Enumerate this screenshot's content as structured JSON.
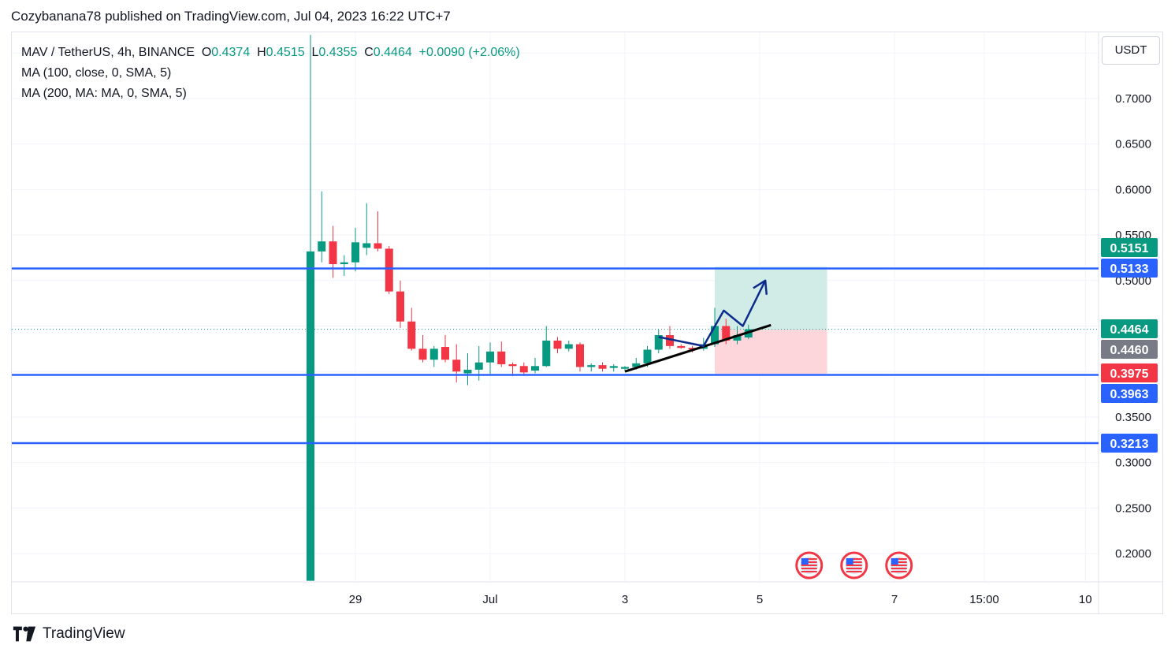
{
  "header": {
    "published_line": "Cozybanana78 published on TradingView.com, Jul 04, 2023 16:22 UTC+7"
  },
  "legend": {
    "symbol": "MAV / TetherUS, 4h, BINANCE",
    "o_label": "O",
    "o_value": "0.4374",
    "h_label": "H",
    "h_value": "0.4515",
    "l_label": "L",
    "l_value": "0.4355",
    "c_label": "C",
    "c_value": "0.4464",
    "change": "+0.0090 (+2.06%)",
    "ma1": "MA (100, close, 0, SMA, 5)",
    "ma2": "MA (200, MA: MA, 0, SMA, 5)"
  },
  "price_axis": {
    "unit": "USDT"
  },
  "footer": {
    "brand": "TradingView"
  },
  "colors": {
    "up": "#089981",
    "down": "#f23645",
    "level_line": "#2962ff",
    "trendline": "#000000",
    "arrow": "#0d2b8c",
    "tp_zone": "#d1ece6",
    "sl_zone": "#fcd6da",
    "current_price_tag": "#089981",
    "entry_tag": "#787b86"
  },
  "chart_data": {
    "type": "candlestick",
    "symbol": "MAV / TetherUS",
    "interval": "4h",
    "exchange": "BINANCE",
    "y_axis": {
      "ticks": [
        0.7,
        0.65,
        0.6,
        0.55,
        0.5,
        0.35,
        0.3,
        0.25,
        0.2
      ],
      "tick_labels": [
        "0.7000",
        "0.6500",
        "0.6000",
        "0.5500",
        "0.5000",
        "0.3500",
        "0.3000",
        "0.2500",
        "0.2000"
      ],
      "ylim": [
        0.17,
        0.77
      ]
    },
    "x_axis": {
      "ticks": [
        {
          "label": "29",
          "t": 4
        },
        {
          "label": "Jul",
          "t": 16
        },
        {
          "label": "3",
          "t": 28
        },
        {
          "label": "5",
          "t": 40
        },
        {
          "label": "7",
          "t": 52
        },
        {
          "label": "15:00",
          "t": 60
        },
        {
          "label": "10",
          "t": 69
        }
      ]
    },
    "candles": [
      {
        "t": 0,
        "o": 0.17,
        "h": 0.77,
        "l": 0.17,
        "c": 0.532
      },
      {
        "t": 1,
        "o": 0.532,
        "h": 0.598,
        "l": 0.52,
        "c": 0.543
      },
      {
        "t": 2,
        "o": 0.543,
        "h": 0.56,
        "l": 0.503,
        "c": 0.518
      },
      {
        "t": 3,
        "o": 0.518,
        "h": 0.528,
        "l": 0.505,
        "c": 0.52
      },
      {
        "t": 4,
        "o": 0.52,
        "h": 0.558,
        "l": 0.51,
        "c": 0.542
      },
      {
        "t": 5,
        "o": 0.536,
        "h": 0.585,
        "l": 0.528,
        "c": 0.541
      },
      {
        "t": 6,
        "o": 0.541,
        "h": 0.576,
        "l": 0.532,
        "c": 0.535
      },
      {
        "t": 7,
        "o": 0.535,
        "h": 0.538,
        "l": 0.485,
        "c": 0.488
      },
      {
        "t": 8,
        "o": 0.488,
        "h": 0.5,
        "l": 0.448,
        "c": 0.455
      },
      {
        "t": 9,
        "o": 0.455,
        "h": 0.47,
        "l": 0.423,
        "c": 0.425
      },
      {
        "t": 10,
        "o": 0.425,
        "h": 0.44,
        "l": 0.41,
        "c": 0.413
      },
      {
        "t": 11,
        "o": 0.413,
        "h": 0.428,
        "l": 0.405,
        "c": 0.425
      },
      {
        "t": 12,
        "o": 0.427,
        "h": 0.44,
        "l": 0.41,
        "c": 0.413
      },
      {
        "t": 13,
        "o": 0.413,
        "h": 0.43,
        "l": 0.388,
        "c": 0.4
      },
      {
        "t": 14,
        "o": 0.398,
        "h": 0.42,
        "l": 0.385,
        "c": 0.402
      },
      {
        "t": 15,
        "o": 0.402,
        "h": 0.428,
        "l": 0.39,
        "c": 0.41
      },
      {
        "t": 16,
        "o": 0.41,
        "h": 0.432,
        "l": 0.397,
        "c": 0.422
      },
      {
        "t": 17,
        "o": 0.422,
        "h": 0.433,
        "l": 0.405,
        "c": 0.408
      },
      {
        "t": 18,
        "o": 0.408,
        "h": 0.41,
        "l": 0.395,
        "c": 0.406
      },
      {
        "t": 19,
        "o": 0.406,
        "h": 0.41,
        "l": 0.395,
        "c": 0.399
      },
      {
        "t": 20,
        "o": 0.401,
        "h": 0.415,
        "l": 0.398,
        "c": 0.406
      },
      {
        "t": 21,
        "o": 0.406,
        "h": 0.45,
        "l": 0.405,
        "c": 0.434
      },
      {
        "t": 22,
        "o": 0.434,
        "h": 0.438,
        "l": 0.42,
        "c": 0.425
      },
      {
        "t": 23,
        "o": 0.425,
        "h": 0.434,
        "l": 0.422,
        "c": 0.43
      },
      {
        "t": 24,
        "o": 0.43,
        "h": 0.432,
        "l": 0.4,
        "c": 0.405
      },
      {
        "t": 25,
        "o": 0.405,
        "h": 0.409,
        "l": 0.4,
        "c": 0.407
      },
      {
        "t": 26,
        "o": 0.407,
        "h": 0.41,
        "l": 0.4,
        "c": 0.403
      },
      {
        "t": 27,
        "o": 0.404,
        "h": 0.408,
        "l": 0.4,
        "c": 0.406
      },
      {
        "t": 28,
        "o": 0.403,
        "h": 0.406,
        "l": 0.4,
        "c": 0.405
      },
      {
        "t": 29,
        "o": 0.405,
        "h": 0.415,
        "l": 0.402,
        "c": 0.409
      },
      {
        "t": 30,
        "o": 0.409,
        "h": 0.428,
        "l": 0.405,
        "c": 0.424
      },
      {
        "t": 31,
        "o": 0.424,
        "h": 0.446,
        "l": 0.42,
        "c": 0.44
      },
      {
        "t": 32,
        "o": 0.44,
        "h": 0.45,
        "l": 0.425,
        "c": 0.428
      },
      {
        "t": 33,
        "o": 0.428,
        "h": 0.43,
        "l": 0.425,
        "c": 0.426
      },
      {
        "t": 34,
        "o": 0.426,
        "h": 0.428,
        "l": 0.421,
        "c": 0.425
      },
      {
        "t": 35,
        "o": 0.425,
        "h": 0.437,
        "l": 0.423,
        "c": 0.43
      },
      {
        "t": 36,
        "o": 0.43,
        "h": 0.47,
        "l": 0.427,
        "c": 0.45
      },
      {
        "t": 37,
        "o": 0.45,
        "h": 0.458,
        "l": 0.43,
        "c": 0.434
      },
      {
        "t": 38,
        "o": 0.434,
        "h": 0.45,
        "l": 0.43,
        "c": 0.44
      },
      {
        "t": 39,
        "o": 0.4374,
        "h": 0.4515,
        "l": 0.4355,
        "c": 0.4464
      }
    ],
    "horizontal_levels": [
      0.5133,
      0.3963,
      0.3213
    ],
    "trendline": [
      {
        "t": 28,
        "y": 0.4
      },
      {
        "t": 41,
        "y": 0.451
      }
    ],
    "projection_path": [
      {
        "t": 31,
        "y": 0.438
      },
      {
        "t": 35,
        "y": 0.428
      },
      {
        "t": 36.8,
        "y": 0.467
      },
      {
        "t": 38.5,
        "y": 0.45
      },
      {
        "t": 40.5,
        "y": 0.5
      }
    ],
    "position": {
      "entry": 0.446,
      "target": 0.5151,
      "stop": 0.3975,
      "t_start": 36,
      "t_end": 46
    },
    "price_labels": [
      {
        "text": "0.5151",
        "kind": "target",
        "value": 0.5151
      },
      {
        "text": "0.5133",
        "kind": "level",
        "value": 0.5133
      },
      {
        "text": "0.4464",
        "kind": "last",
        "value": 0.4464
      },
      {
        "text": "0.4460",
        "kind": "entry",
        "value": 0.446
      },
      {
        "text": "0.3975",
        "kind": "stop",
        "value": 0.3975
      },
      {
        "text": "0.3963",
        "kind": "level",
        "value": 0.3963
      },
      {
        "text": "0.3213",
        "kind": "level",
        "value": 0.3213
      }
    ],
    "event_markers": [
      {
        "t": 43
      },
      {
        "t": 47
      },
      {
        "t": 51
      }
    ]
  }
}
